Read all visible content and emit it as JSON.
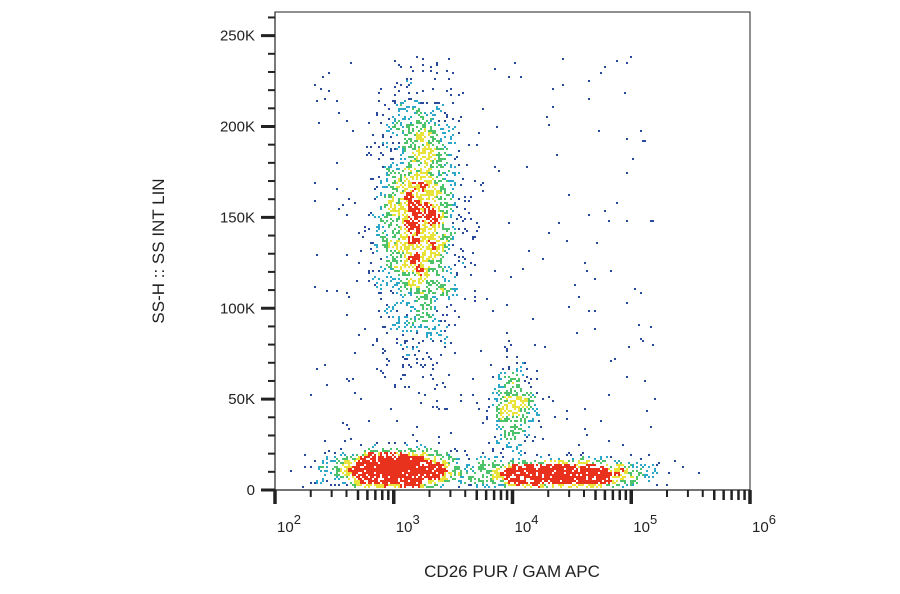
{
  "chart_data": {
    "type": "scatter",
    "style": "density-colored flow cytometry dot plot",
    "xlabel": "CD26 PUR / GAM APC",
    "ylabel": "SS-H :: SS INT LIN",
    "x_scale": "log",
    "xlim": [
      100,
      1000000
    ],
    "x_ticks": [
      {
        "base": "10",
        "exp": "2",
        "value": 100
      },
      {
        "base": "10",
        "exp": "3",
        "value": 1000
      },
      {
        "base": "10",
        "exp": "4",
        "value": 10000
      },
      {
        "base": "10",
        "exp": "5",
        "value": 100000
      },
      {
        "base": "10",
        "exp": "6",
        "value": 1000000
      }
    ],
    "y_scale": "linear",
    "ylim": [
      0,
      263000
    ],
    "y_ticks": [
      {
        "label": "0",
        "value": 0
      },
      {
        "label": "50K",
        "value": 50000
      },
      {
        "label": "100K",
        "value": 100000
      },
      {
        "label": "150K",
        "value": 150000
      },
      {
        "label": "200K",
        "value": 200000
      },
      {
        "label": "250K",
        "value": 250000
      }
    ],
    "grid": false,
    "legend": "none",
    "colormap": [
      "#2a4a9c",
      "#2aa7c9",
      "#4cc36a",
      "#e8e23a",
      "#e8321e"
    ],
    "populations": [
      {
        "x_center": 1600,
        "x_log_sd": 0.17,
        "y_center": 150000,
        "y_sd": 35000,
        "events": 2200
      },
      {
        "x_center": 1000,
        "x_log_sd": 0.25,
        "y_center": 12000,
        "y_sd": 5000,
        "events": 1600
      },
      {
        "x_center": 10000,
        "x_log_sd": 0.1,
        "y_center": 45000,
        "y_sd": 12000,
        "events": 350
      },
      {
        "x_center": 25000,
        "x_log_sd": 0.35,
        "y_center": 9000,
        "y_sd": 4000,
        "events": 1300
      },
      {
        "x_range": [
          200,
          160000
        ],
        "y_range": [
          0,
          240000
        ],
        "events": 300
      }
    ],
    "y_cutoff": 240000
  }
}
